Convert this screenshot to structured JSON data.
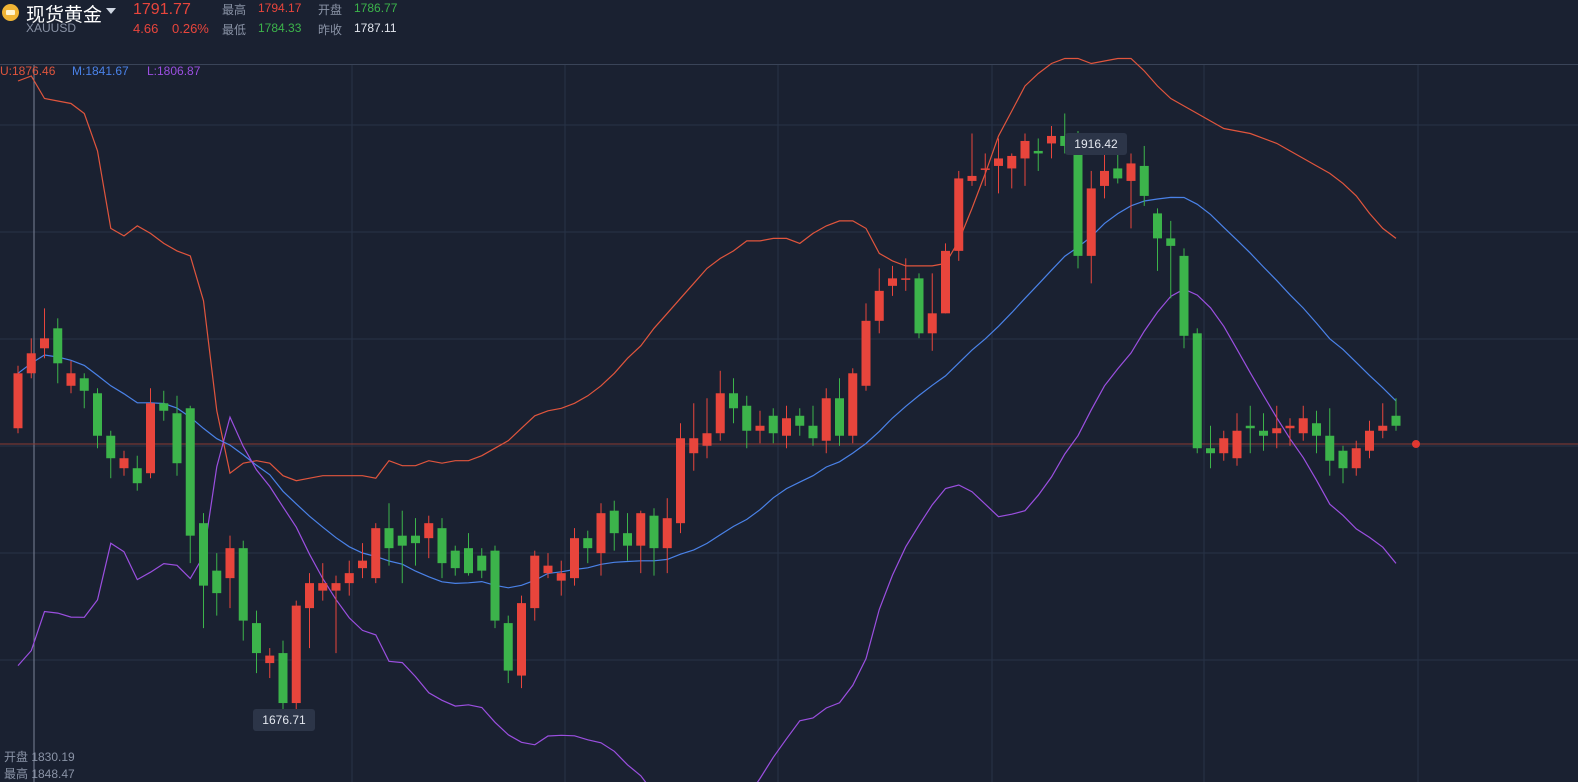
{
  "header": {
    "title": "现货黄金",
    "symbol": "XAUUSD",
    "price": "1791.77",
    "change": "4.66",
    "change_pct": "0.26%",
    "high_label": "最高",
    "high": "1794.17",
    "open_label": "开盘",
    "open": "1786.77",
    "low_label": "最低",
    "low": "1784.33",
    "prev_label": "昨收",
    "prev": "1787.11"
  },
  "boll": {
    "upper": "U:1876.46",
    "middle": "M:1841.67",
    "lower": "L:1806.87"
  },
  "bottom_info": {
    "open_line": "开盘 1830.19",
    "high_line": "最高 1848.47"
  },
  "markers": {
    "max_label": "1916.42",
    "min_label": "1676.71"
  },
  "colors": {
    "up": "#e8453c",
    "down": "#3cb44b",
    "upper_band": "#e0553d",
    "middle_band": "#4a82e8",
    "lower_band": "#9b4fe0",
    "background": "#1a2131"
  },
  "chart_data": {
    "type": "candlestick",
    "title": "现货黄金 XAUUSD",
    "ylim": [
      1660,
      1945
    ],
    "grid": true,
    "candles": [
      [
        1800,
        1822,
        1825,
        1798
      ],
      [
        1822,
        1830,
        1836,
        1820
      ],
      [
        1832,
        1836,
        1848,
        1828
      ],
      [
        1840,
        1826,
        1844,
        1818
      ],
      [
        1817,
        1822,
        1827,
        1814
      ],
      [
        1820,
        1815,
        1822,
        1808
      ],
      [
        1814,
        1797,
        1816,
        1792
      ],
      [
        1797,
        1788,
        1799,
        1780
      ],
      [
        1784,
        1788,
        1791,
        1781
      ],
      [
        1784,
        1778,
        1789,
        1775
      ],
      [
        1782,
        1810,
        1816,
        1780
      ],
      [
        1810,
        1807,
        1815,
        1803
      ],
      [
        1806,
        1786,
        1813,
        1781
      ],
      [
        1808,
        1757,
        1809,
        1746
      ],
      [
        1762,
        1737,
        1766,
        1720
      ],
      [
        1743,
        1734,
        1750,
        1725
      ],
      [
        1740,
        1752,
        1757,
        1728
      ],
      [
        1752,
        1723,
        1755,
        1715
      ],
      [
        1722,
        1710,
        1727,
        1702
      ],
      [
        1706,
        1709,
        1712,
        1700
      ],
      [
        1710,
        1690,
        1715,
        1684
      ],
      [
        1690,
        1729,
        1731,
        1687
      ],
      [
        1728,
        1738,
        1742,
        1712
      ],
      [
        1735,
        1738,
        1746,
        1731
      ],
      [
        1735,
        1738,
        1741,
        1710
      ],
      [
        1738,
        1742,
        1747,
        1733
      ],
      [
        1744,
        1747,
        1754,
        1740
      ],
      [
        1740,
        1760,
        1762,
        1738
      ],
      [
        1760,
        1752,
        1770,
        1745
      ],
      [
        1757,
        1753,
        1767,
        1738
      ],
      [
        1757,
        1754,
        1764,
        1745
      ],
      [
        1756,
        1762,
        1765,
        1748
      ],
      [
        1760,
        1746,
        1764,
        1740
      ],
      [
        1751,
        1744,
        1753,
        1741
      ],
      [
        1752,
        1742,
        1758,
        1741
      ],
      [
        1749,
        1743,
        1752,
        1740
      ],
      [
        1751,
        1723,
        1753,
        1720
      ],
      [
        1722,
        1703,
        1725,
        1698
      ],
      [
        1701,
        1730,
        1733,
        1696
      ],
      [
        1728,
        1749,
        1751,
        1723
      ],
      [
        1742,
        1745,
        1750,
        1740
      ],
      [
        1739,
        1742,
        1747,
        1733
      ],
      [
        1740,
        1756,
        1760,
        1737
      ],
      [
        1756,
        1752,
        1759,
        1746
      ],
      [
        1750,
        1766,
        1770,
        1741
      ],
      [
        1767,
        1758,
        1771,
        1751
      ],
      [
        1758,
        1753,
        1766,
        1747
      ],
      [
        1753,
        1766,
        1767,
        1742
      ],
      [
        1765,
        1752,
        1768,
        1741
      ],
      [
        1752,
        1764,
        1772,
        1742
      ],
      [
        1762,
        1796,
        1802,
        1758
      ],
      [
        1790,
        1796,
        1810,
        1783
      ],
      [
        1793,
        1798,
        1812,
        1788
      ],
      [
        1798,
        1814,
        1823,
        1795
      ],
      [
        1814,
        1808,
        1820,
        1802
      ],
      [
        1809,
        1799,
        1813,
        1792
      ],
      [
        1799,
        1801,
        1807,
        1794
      ],
      [
        1805,
        1798,
        1808,
        1794
      ],
      [
        1797,
        1804,
        1809,
        1792
      ],
      [
        1805,
        1801,
        1808,
        1797
      ],
      [
        1801,
        1796,
        1809,
        1793
      ],
      [
        1795,
        1812,
        1816,
        1790
      ],
      [
        1812,
        1797,
        1820,
        1793
      ],
      [
        1797,
        1822,
        1824,
        1794
      ],
      [
        1817,
        1843,
        1850,
        1815
      ],
      [
        1843,
        1855,
        1864,
        1838
      ],
      [
        1857,
        1860,
        1865,
        1853
      ],
      [
        1860,
        1860,
        1868,
        1855
      ],
      [
        1860,
        1838,
        1862,
        1836
      ],
      [
        1838,
        1846,
        1862,
        1831
      ],
      [
        1846,
        1871,
        1874,
        1846
      ],
      [
        1871,
        1900,
        1903,
        1867
      ],
      [
        1899,
        1901,
        1918,
        1897
      ],
      [
        1904,
        1904,
        1910,
        1897
      ],
      [
        1905,
        1908,
        1916,
        1894
      ],
      [
        1904,
        1909,
        1910,
        1896
      ],
      [
        1908,
        1915,
        1918,
        1897
      ],
      [
        1911,
        1910,
        1916,
        1903
      ],
      [
        1914,
        1917,
        1921,
        1908
      ],
      [
        1917,
        1913,
        1926,
        1910
      ],
      [
        1915,
        1869,
        1919,
        1864
      ],
      [
        1869,
        1896,
        1903,
        1858
      ],
      [
        1897,
        1903,
        1916,
        1892
      ],
      [
        1904,
        1900,
        1913,
        1898
      ],
      [
        1899,
        1906,
        1910,
        1880
      ],
      [
        1905,
        1893,
        1913,
        1889
      ],
      [
        1886,
        1876,
        1888,
        1863
      ],
      [
        1876,
        1873,
        1883,
        1852
      ],
      [
        1869,
        1837,
        1872,
        1832
      ],
      [
        1838,
        1792,
        1840,
        1790
      ],
      [
        1792,
        1790,
        1801,
        1784
      ],
      [
        1790,
        1796,
        1799,
        1787
      ],
      [
        1788,
        1799,
        1806,
        1785
      ],
      [
        1801,
        1800,
        1809,
        1790
      ],
      [
        1799,
        1797,
        1806,
        1791
      ],
      [
        1798,
        1800,
        1809,
        1792
      ],
      [
        1800,
        1801,
        1804,
        1793
      ],
      [
        1798,
        1804,
        1809,
        1795
      ],
      [
        1802,
        1797,
        1807,
        1790
      ],
      [
        1797,
        1787,
        1808,
        1781
      ],
      [
        1791,
        1784,
        1793,
        1778
      ],
      [
        1784,
        1792,
        1795,
        1781
      ],
      [
        1791,
        1799,
        1803,
        1788
      ],
      [
        1799,
        1801,
        1810,
        1796
      ],
      [
        1805,
        1801,
        1812,
        1799
      ]
    ],
    "bollinger": {
      "upper": [
        1939,
        1941,
        1932,
        1931,
        1930,
        1926,
        1911,
        1880,
        1877,
        1881,
        1878,
        1874,
        1871,
        1869,
        1851,
        1807,
        1782,
        1786,
        1787,
        1786,
        1781,
        1779,
        1780,
        1781,
        1781,
        1781,
        1781,
        1780,
        1787,
        1785,
        1785,
        1787,
        1786,
        1787,
        1787,
        1789,
        1792,
        1795,
        1800,
        1805,
        1807,
        1808,
        1810,
        1813,
        1817,
        1822,
        1828,
        1833,
        1840,
        1846,
        1852,
        1858,
        1864,
        1868,
        1871,
        1875,
        1875,
        1876,
        1876,
        1874,
        1878,
        1881,
        1883,
        1883,
        1880,
        1870,
        1867,
        1865,
        1865,
        1865,
        1866,
        1875,
        1888,
        1902,
        1917,
        1927,
        1937,
        1942,
        1946,
        1948,
        1948,
        1946,
        1947,
        1948,
        1948,
        1943,
        1937,
        1932,
        1929,
        1926,
        1923,
        1920,
        1919,
        1918,
        1916,
        1914,
        1911,
        1908,
        1905,
        1902,
        1898,
        1893,
        1886,
        1880,
        1876
      ],
      "upper_offset": 0
    },
    "note_ticks": []
  }
}
